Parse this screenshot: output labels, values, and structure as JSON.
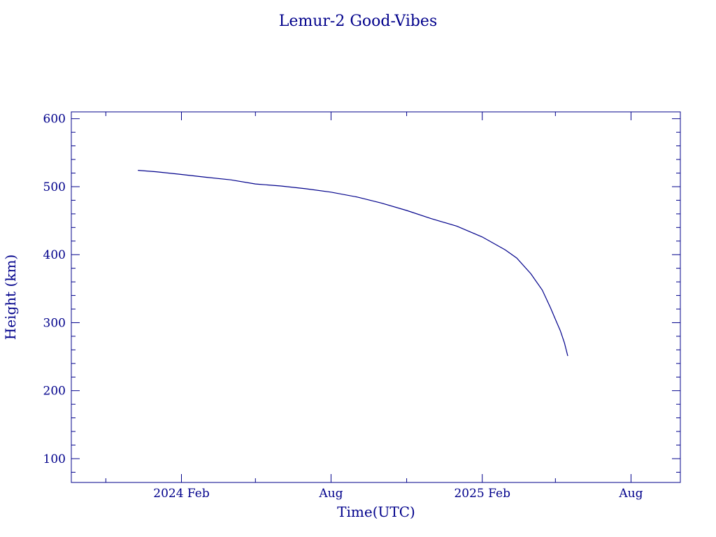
{
  "chart_data": {
    "type": "line",
    "title": "Lemur-2 Good-Vibes",
    "xlabel": "Time(UTC)",
    "ylabel": "Height (km)",
    "ylim": [
      65,
      610
    ],
    "xlim": [
      "2023-09-20",
      "2025-09-30"
    ],
    "x_ticks": [
      {
        "date": "2024-02-01",
        "label": "2024 Feb"
      },
      {
        "date": "2024-08-01",
        "label": "Aug"
      },
      {
        "date": "2025-02-01",
        "label": "2025 Feb"
      },
      {
        "date": "2025-08-01",
        "label": "Aug"
      }
    ],
    "x_minor_ticks": [
      "2023-11-01",
      "2024-05-01",
      "2024-11-01",
      "2025-05-01"
    ],
    "y_ticks": [
      100,
      200,
      300,
      400,
      500,
      600
    ],
    "y_minor_step": 20,
    "grid": false,
    "color": "#00008b",
    "series": [
      {
        "x": [
          "2023-12-10",
          "2024-01-01",
          "2024-02-01",
          "2024-03-01",
          "2024-04-01",
          "2024-05-01",
          "2024-06-01",
          "2024-07-01",
          "2024-08-01",
          "2024-09-01",
          "2024-10-01",
          "2024-11-01",
          "2024-12-01",
          "2025-01-01",
          "2025-02-01",
          "2025-03-01",
          "2025-03-15",
          "2025-04-01",
          "2025-04-15",
          "2025-04-25",
          "2025-05-01",
          "2025-05-07",
          "2025-05-12",
          "2025-05-16"
        ],
        "y": [
          524,
          522,
          518,
          514,
          510,
          504,
          501,
          497,
          492,
          485,
          476,
          465,
          453,
          442,
          426,
          407,
          395,
          372,
          348,
          322,
          305,
          288,
          270,
          251
        ]
      }
    ]
  }
}
